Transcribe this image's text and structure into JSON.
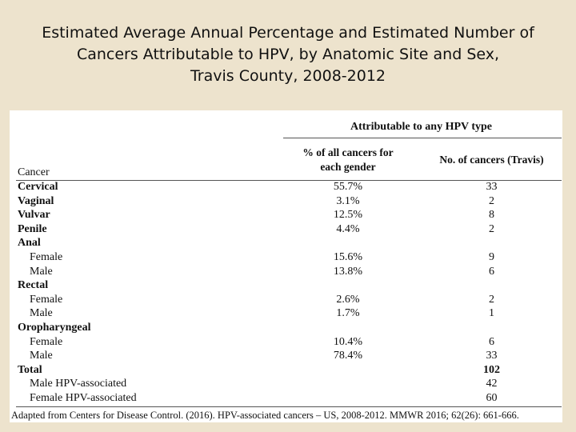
{
  "title_lines": [
    "Estimated Average Annual Percentage and Estimated Number of",
    "Cancers Attributable to HPV, by Anatomic Site and Sex,",
    "Travis County, 2008-2012"
  ],
  "table": {
    "group_header": "Attributable to any HPV type",
    "col_pct_header_lines": [
      "% of all cancers for",
      "each gender"
    ],
    "col_num_header": "No. of cancers (Travis)",
    "row_header": "Cancer",
    "rows": [
      {
        "label": "Cervical",
        "pct": "55.7%",
        "num": "33"
      },
      {
        "label": "Vaginal",
        "pct": "3.1%",
        "num": "2"
      },
      {
        "label": "Vulvar",
        "pct": "12.5%",
        "num": "8"
      },
      {
        "label": "Penile",
        "pct": "4.4%",
        "num": "2"
      },
      {
        "label": "Anal",
        "pct": "",
        "num": ""
      },
      {
        "label": "Female",
        "pct": "15.6%",
        "num": "9"
      },
      {
        "label": "Male",
        "pct": "13.8%",
        "num": "6"
      },
      {
        "label": "Rectal",
        "pct": "",
        "num": ""
      },
      {
        "label": "Female",
        "pct": "2.6%",
        "num": "2"
      },
      {
        "label": "Male",
        "pct": "1.7%",
        "num": "1"
      },
      {
        "label": "Oropharyngeal",
        "pct": "",
        "num": ""
      },
      {
        "label": "Female",
        "pct": "10.4%",
        "num": "6"
      },
      {
        "label": "Male",
        "pct": "78.4%",
        "num": "33"
      },
      {
        "label": "Total",
        "pct": "",
        "num": "102"
      },
      {
        "label": "Male HPV-associated",
        "pct": "",
        "num": "42"
      },
      {
        "label": "Female HPV-associated",
        "pct": "",
        "num": "60"
      }
    ],
    "source_note": "Adapted from Centers for Disease Control. (2016). HPV-associated cancers – US, 2008-2012. MMWR 2016; 62(26): 661-666."
  }
}
